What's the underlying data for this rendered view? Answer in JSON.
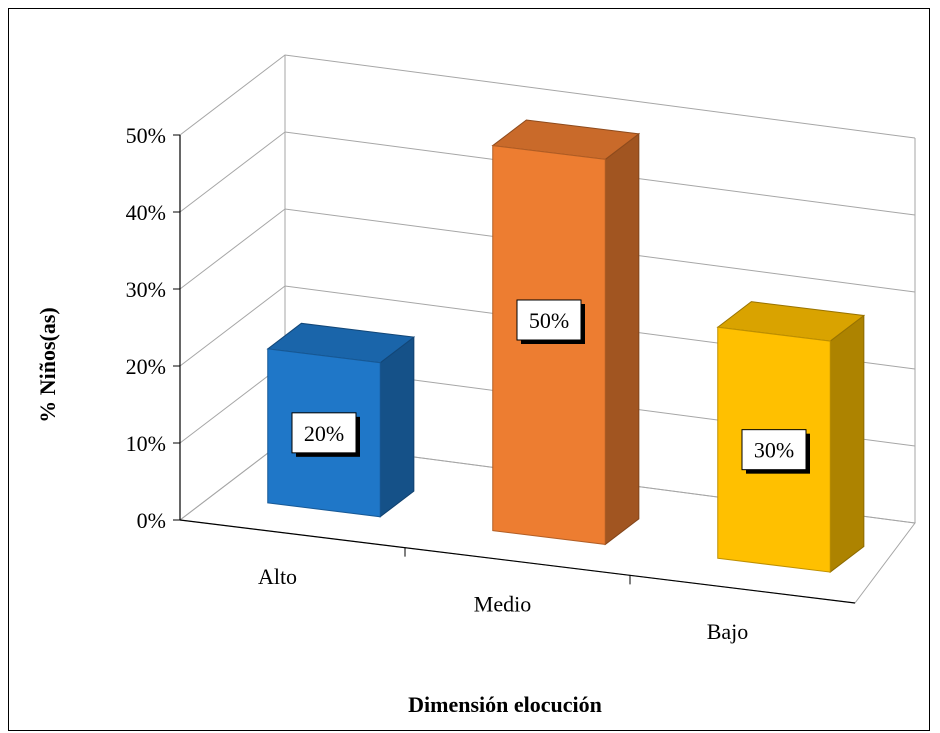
{
  "chart_data": {
    "type": "bar",
    "categories": [
      "Alto",
      "Medio",
      "Bajo"
    ],
    "values": [
      20,
      50,
      30
    ],
    "data_labels": [
      "20%",
      "50%",
      "30%"
    ],
    "colors": [
      "#1F77C8",
      "#ED7D31",
      "#FFC000"
    ],
    "ylabel": "% Niños(as)",
    "xlabel": "Dimensión elocución",
    "ylim": [
      0,
      50
    ],
    "yticks": [
      "0%",
      "10%",
      "20%",
      "30%",
      "40%",
      "50%"
    ],
    "grid": true,
    "legend": "none",
    "style": "3d-column"
  }
}
